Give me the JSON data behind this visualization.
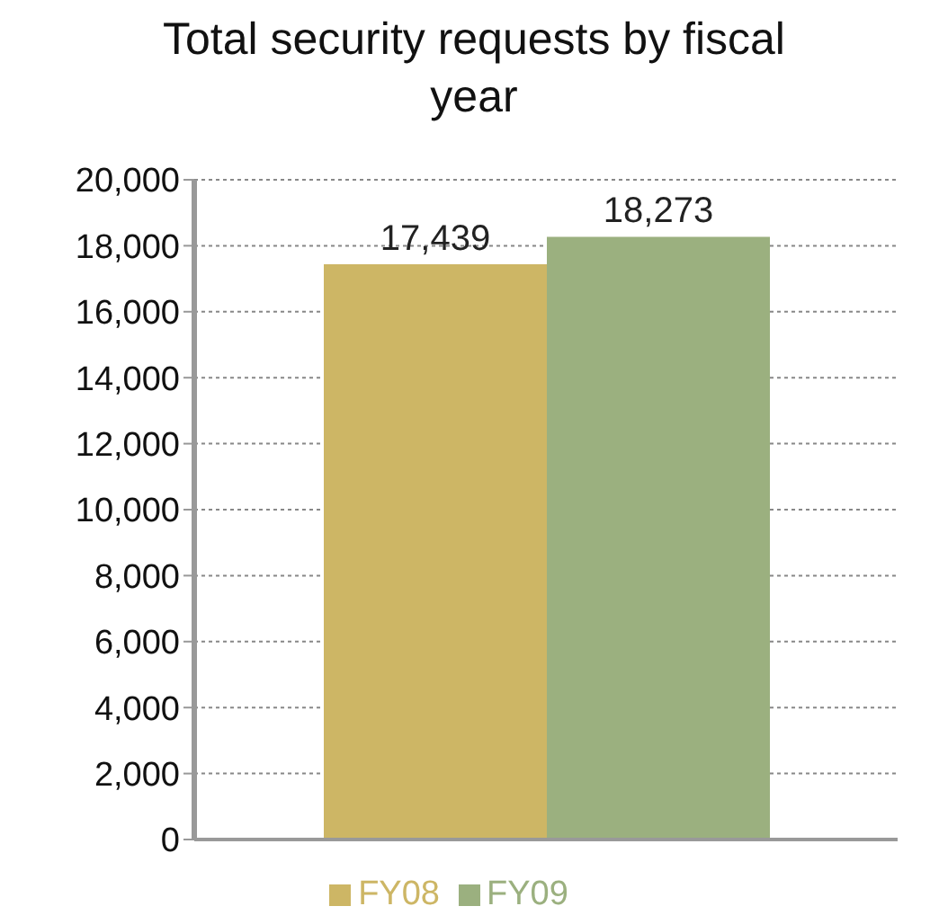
{
  "chart_data": {
    "type": "bar",
    "title": "Total security requests by fiscal year",
    "categories": [
      null
    ],
    "series": [
      {
        "name": "FY08",
        "color": "#cdb665",
        "values": [
          17439
        ],
        "value_labels": [
          "17,439"
        ]
      },
      {
        "name": "FY09",
        "color": "#9bb07f",
        "values": [
          18273
        ],
        "value_labels": [
          "18,273"
        ]
      }
    ],
    "ylim": [
      0,
      20000
    ],
    "yticks": [
      0,
      {
        "value": 2000,
        "label": "2,000"
      },
      {
        "value": 4000,
        "label": "4,000"
      },
      {
        "value": 6000,
        "label": "6,000"
      },
      {
        "value": 8000,
        "label": "8,000"
      },
      {
        "value": 10000,
        "label": "10,000"
      },
      {
        "value": 12000,
        "label": "12,000"
      },
      {
        "value": 14000,
        "label": "14,000"
      },
      {
        "value": 16000,
        "label": "16,000"
      },
      {
        "value": 18000,
        "label": "18,000"
      },
      {
        "value": 20000,
        "label": "20,000"
      }
    ],
    "grid": "y",
    "legend": "bottom",
    "tick_labels": "y"
  }
}
